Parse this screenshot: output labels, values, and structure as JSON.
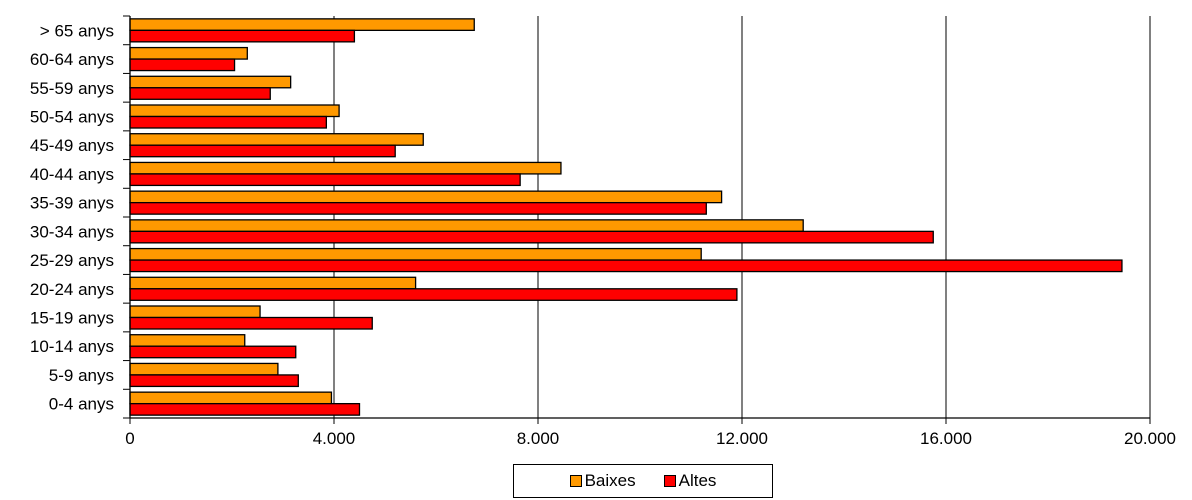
{
  "chart_data": {
    "type": "bar",
    "orientation": "horizontal",
    "categories": [
      "0-4 anys",
      "5-9 anys",
      "10-14 anys",
      "15-19 anys",
      "20-24 anys",
      "25-29 anys",
      "30-34 anys",
      "35-39 anys",
      "40-44 anys",
      "45-49 anys",
      "50-54 anys",
      "55-59 anys",
      "60-64 anys",
      "> 65 anys"
    ],
    "series": [
      {
        "name": "Baixes",
        "color": "#FF9900",
        "values": [
          3950,
          2900,
          2250,
          2550,
          5600,
          11200,
          13200,
          11600,
          8450,
          5750,
          4100,
          3150,
          2300,
          6750
        ]
      },
      {
        "name": "Altes",
        "color": "#FF0000",
        "values": [
          4500,
          3300,
          3250,
          4750,
          11900,
          19450,
          15750,
          11300,
          7650,
          5200,
          3850,
          2750,
          2050,
          4400
        ]
      }
    ],
    "xlim": [
      0,
      20000
    ],
    "xticks": [
      "0",
      "4.000",
      "8.000",
      "12.000",
      "16.000",
      "20.000"
    ],
    "xtick_values": [
      0,
      4000,
      8000,
      12000,
      16000,
      20000
    ],
    "grid": "vertical",
    "legend_position": "bottom",
    "title": "",
    "xlabel": "",
    "ylabel": ""
  }
}
